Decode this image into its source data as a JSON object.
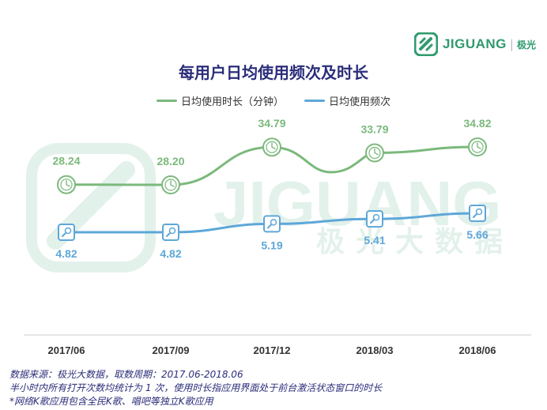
{
  "brand": {
    "name": "JIGUANG",
    "cn": "极光",
    "watermark_en": "JIGUANG",
    "watermark_cn": "极光大数据"
  },
  "colors": {
    "duration": "#7bb97c",
    "frequency": "#5ea7d8",
    "title": "#2b2d7a",
    "brand": "#2f9a6e"
  },
  "chart_data": {
    "type": "line",
    "title": "每用户日均使用频次及时长",
    "categories": [
      "2017/06",
      "2017/09",
      "2017/12",
      "2018/03",
      "2018/06"
    ],
    "series": [
      {
        "name": "日均使用时长（分钟）",
        "values": [
          28.24,
          28.2,
          34.79,
          33.79,
          34.82
        ],
        "icon": "clock-icon"
      },
      {
        "name": "日均使用频次",
        "values": [
          4.82,
          4.82,
          5.19,
          5.41,
          5.66
        ],
        "icon": "microphone-icon"
      }
    ],
    "legend_position": "top-center",
    "grid": false
  },
  "footnotes": [
    "数据来源：极光大数据，取数周期：2017.06-2018.06",
    "半小时内所有打开次数均统计为 1 次，使用时长指应用界面处于前台激活状态窗口的时长",
    "*网络K歌应用包含全民K歌、唱吧等独立K歌应用"
  ]
}
